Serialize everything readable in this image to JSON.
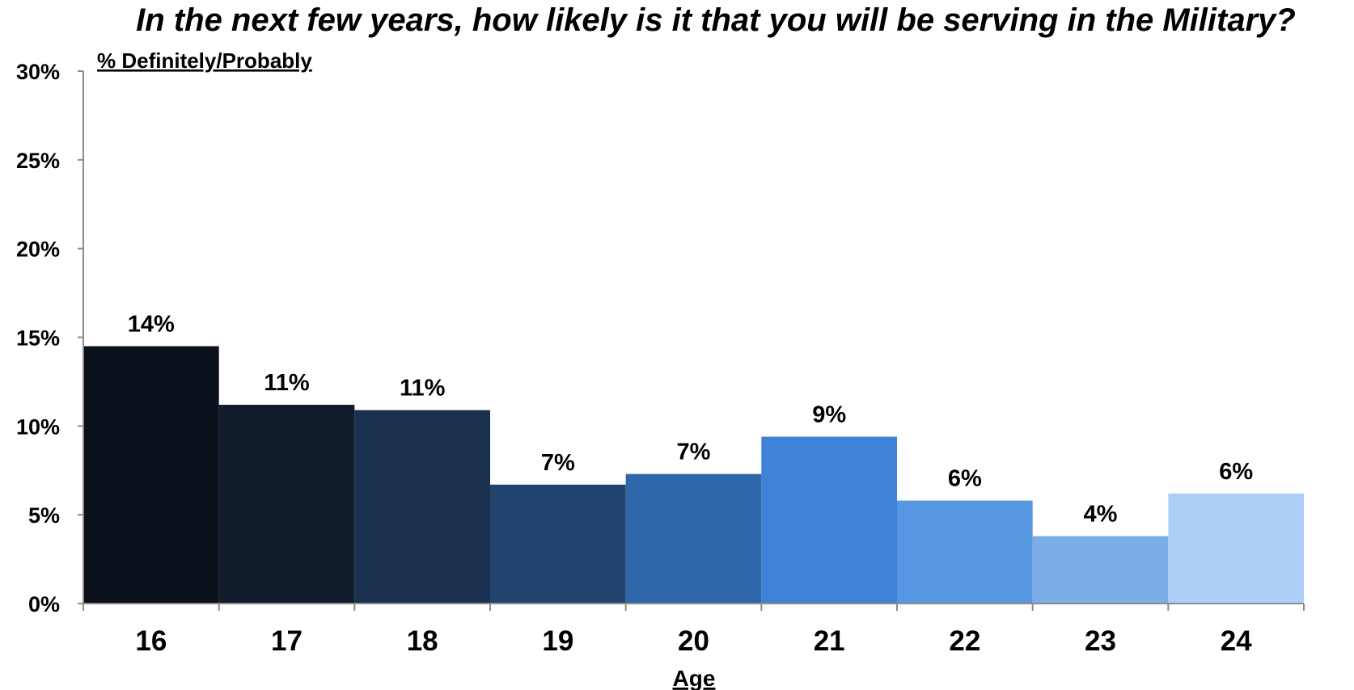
{
  "chart_data": {
    "type": "bar",
    "title": "In the next few years, how likely is it that you will be serving in the Military?",
    "subtitle": "% Definitely/Probably",
    "xlabel": "Age",
    "ylabel": "",
    "categories": [
      "16",
      "17",
      "18",
      "19",
      "20",
      "21",
      "22",
      "23",
      "24"
    ],
    "values": [
      14.5,
      11.2,
      10.9,
      6.7,
      7.3,
      9.4,
      5.8,
      3.8,
      6.2
    ],
    "data_labels": [
      "14%",
      "11%",
      "11%",
      "7%",
      "7%",
      "9%",
      "6%",
      "4%",
      "6%"
    ],
    "colors": [
      "#0b111a",
      "#111c2d",
      "#1a324f",
      "#224570",
      "#2f68aa",
      "#3d82d6",
      "#5697e2",
      "#7bade8",
      "#adcff5"
    ],
    "ylim": [
      0,
      30
    ],
    "yticks": [
      0,
      5,
      10,
      15,
      20,
      25,
      30
    ],
    "ytick_labels": [
      "0%",
      "5%",
      "10%",
      "15%",
      "20%",
      "25%",
      "30%"
    ],
    "grid": false,
    "legend": "none"
  }
}
